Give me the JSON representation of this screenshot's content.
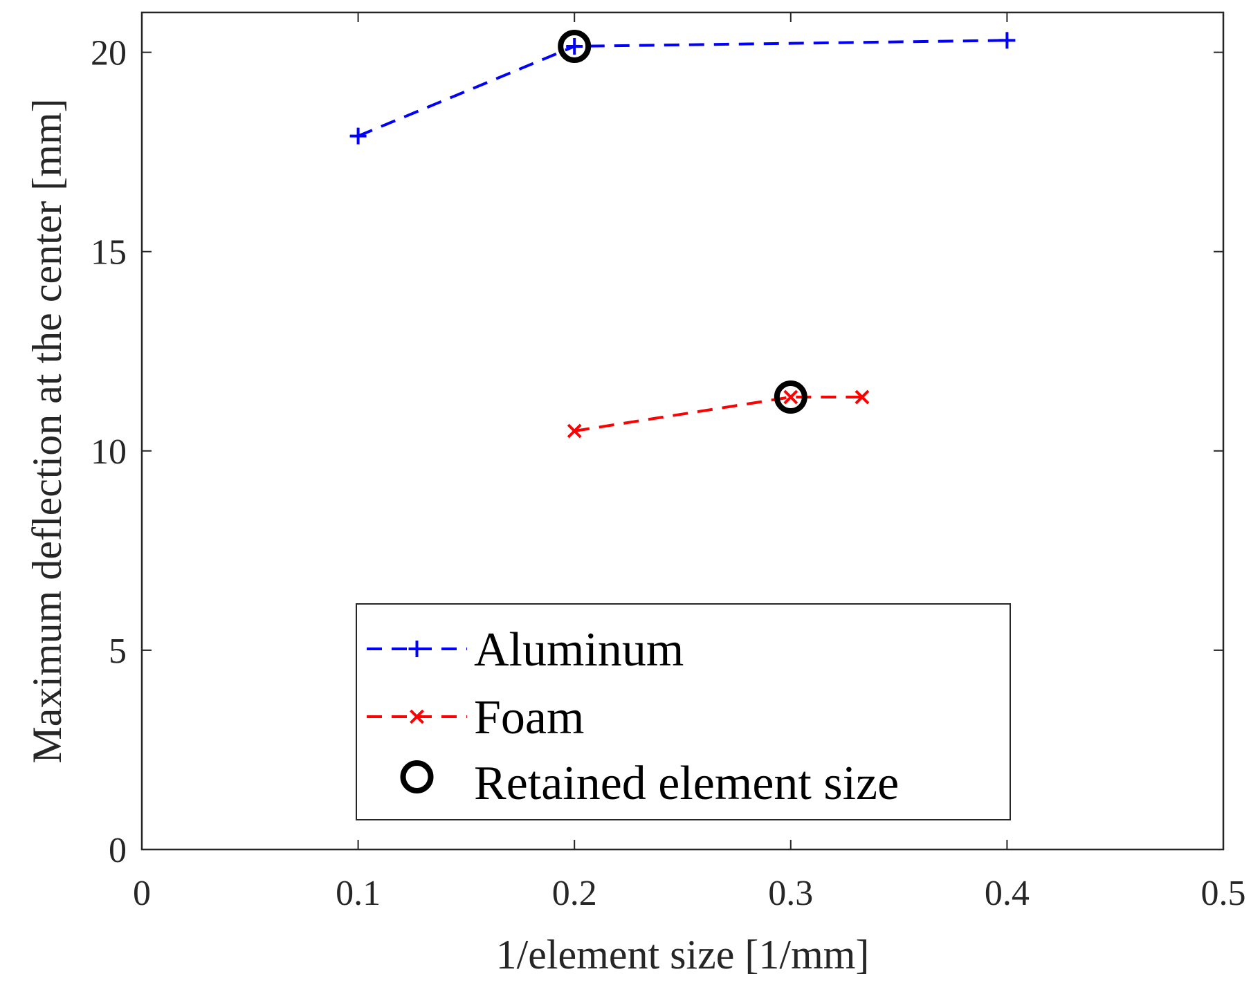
{
  "chart_data": {
    "type": "line",
    "xlabel": "1/element size [1/mm]",
    "ylabel": "Maximum deflection at the center [mm]",
    "xlim": [
      0,
      0.5
    ],
    "ylim": [
      0,
      21
    ],
    "xticks": [
      0,
      0.1,
      0.2,
      0.3,
      0.4,
      0.5
    ],
    "xtick_labels": [
      "0",
      "0.1",
      "0.2",
      "0.3",
      "0.4",
      "0.5"
    ],
    "yticks": [
      0,
      5,
      10,
      15,
      20
    ],
    "ytick_labels": [
      "0",
      "5",
      "10",
      "15",
      "20"
    ],
    "grid": false,
    "legend_position": "bottom-center",
    "series": [
      {
        "name": "Aluminum",
        "color": "#0000ff",
        "marker": "plus",
        "line_style": "dashed",
        "x": [
          0.1,
          0.2,
          0.4
        ],
        "y": [
          17.9,
          20.15,
          20.3
        ]
      },
      {
        "name": "Foam",
        "color": "#ff0000",
        "marker": "x",
        "line_style": "dashed",
        "x": [
          0.2,
          0.3,
          0.333
        ],
        "y": [
          10.5,
          11.35,
          11.35
        ]
      }
    ],
    "highlight": {
      "name": "Retained element size",
      "color": "#000000",
      "marker": "circle",
      "points": [
        {
          "x": 0.2,
          "y": 20.15
        },
        {
          "x": 0.3,
          "y": 11.35
        }
      ]
    }
  }
}
